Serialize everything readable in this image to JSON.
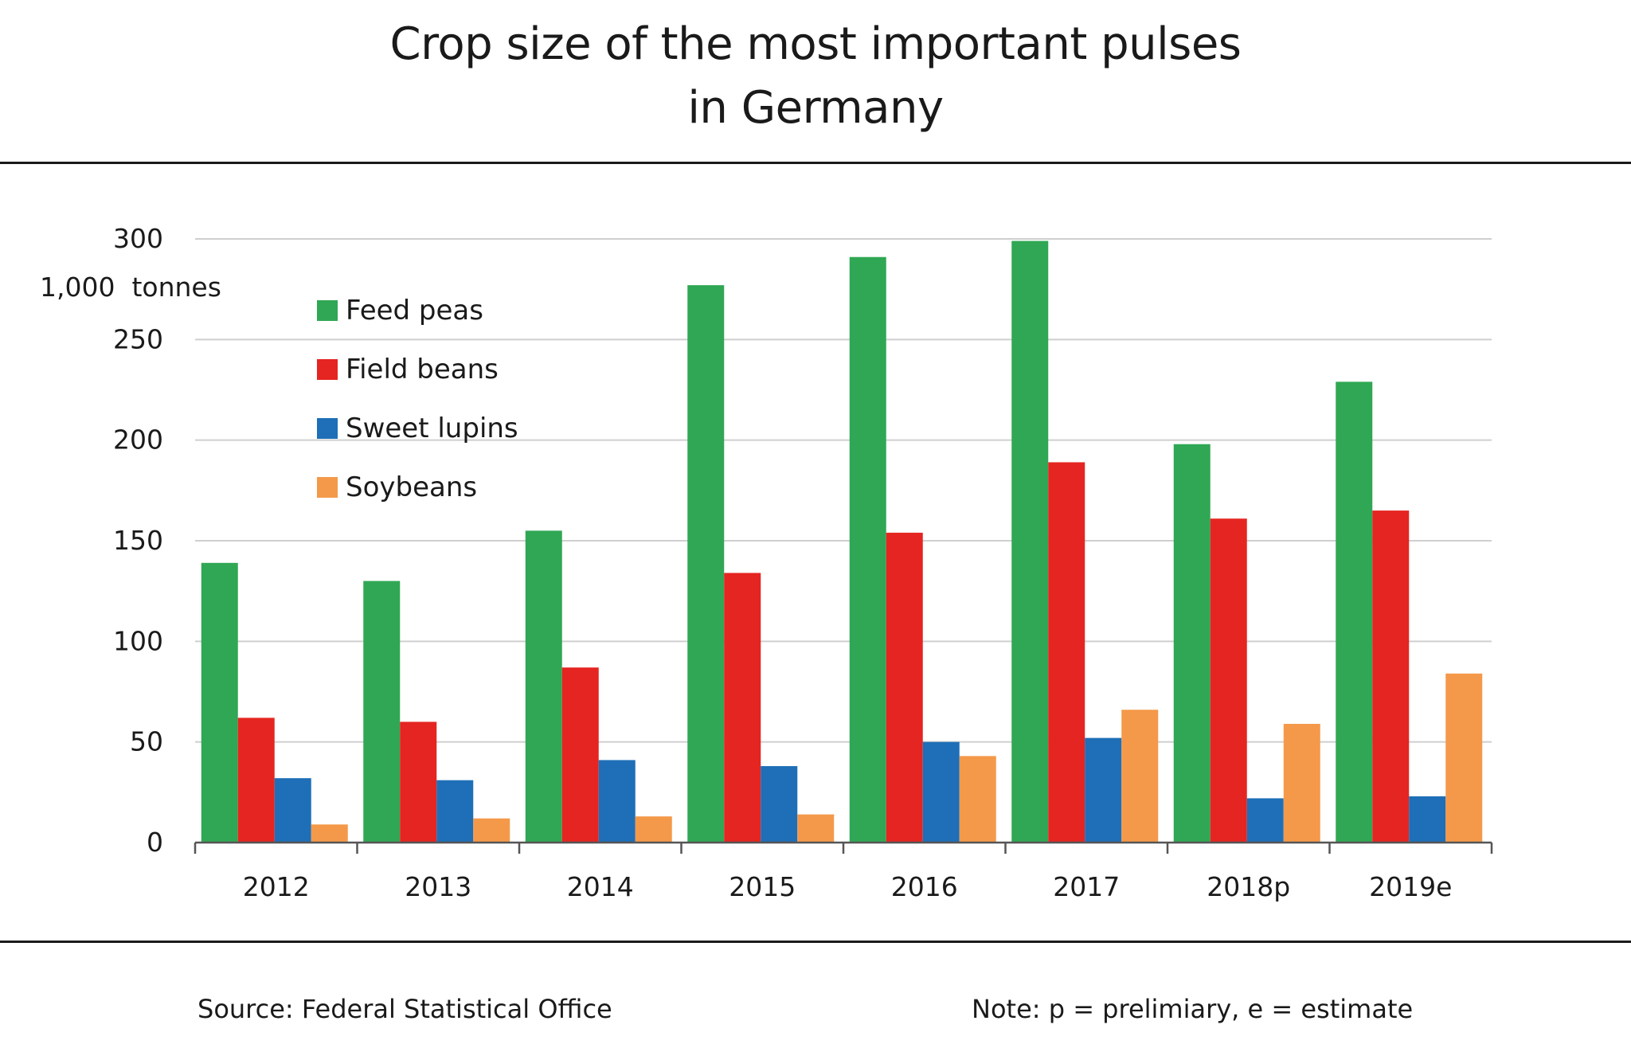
{
  "header": {
    "title_line1": "Crop size of the most important pulses",
    "title_line2": "in Germany"
  },
  "footer": {
    "source": "Source: Federal Statistical Office",
    "note": "Note: p = prelimiary, e = estimate"
  },
  "colors": {
    "Feed peas": "#30a754",
    "Field beans": "#e52521",
    "Sweet lupins": "#1e6fb7",
    "Soybeans": "#f4994a",
    "grid": "#cfcfcf",
    "axis": "#555555"
  },
  "chart_data": {
    "type": "bar",
    "title": "Crop size of the most important pulses in Germany",
    "ylabel": "1,000  tonnes",
    "xlabel": "",
    "ylim": [
      0,
      300
    ],
    "yticks": [
      0,
      50,
      100,
      150,
      200,
      250,
      300
    ],
    "grid": true,
    "legend_position": "top-left",
    "categories": [
      "2012",
      "2013",
      "2014",
      "2015",
      "2016",
      "2017",
      "2018p",
      "2019e"
    ],
    "series": [
      {
        "name": "Feed peas",
        "values": [
          139,
          130,
          155,
          277,
          291,
          299,
          198,
          229
        ]
      },
      {
        "name": "Field beans",
        "values": [
          62,
          60,
          87,
          134,
          154,
          189,
          161,
          165
        ]
      },
      {
        "name": "Sweet lupins",
        "values": [
          32,
          31,
          41,
          38,
          50,
          52,
          22,
          23
        ]
      },
      {
        "name": "Soybeans",
        "values": [
          9,
          12,
          13,
          14,
          43,
          66,
          59,
          84
        ]
      }
    ]
  }
}
